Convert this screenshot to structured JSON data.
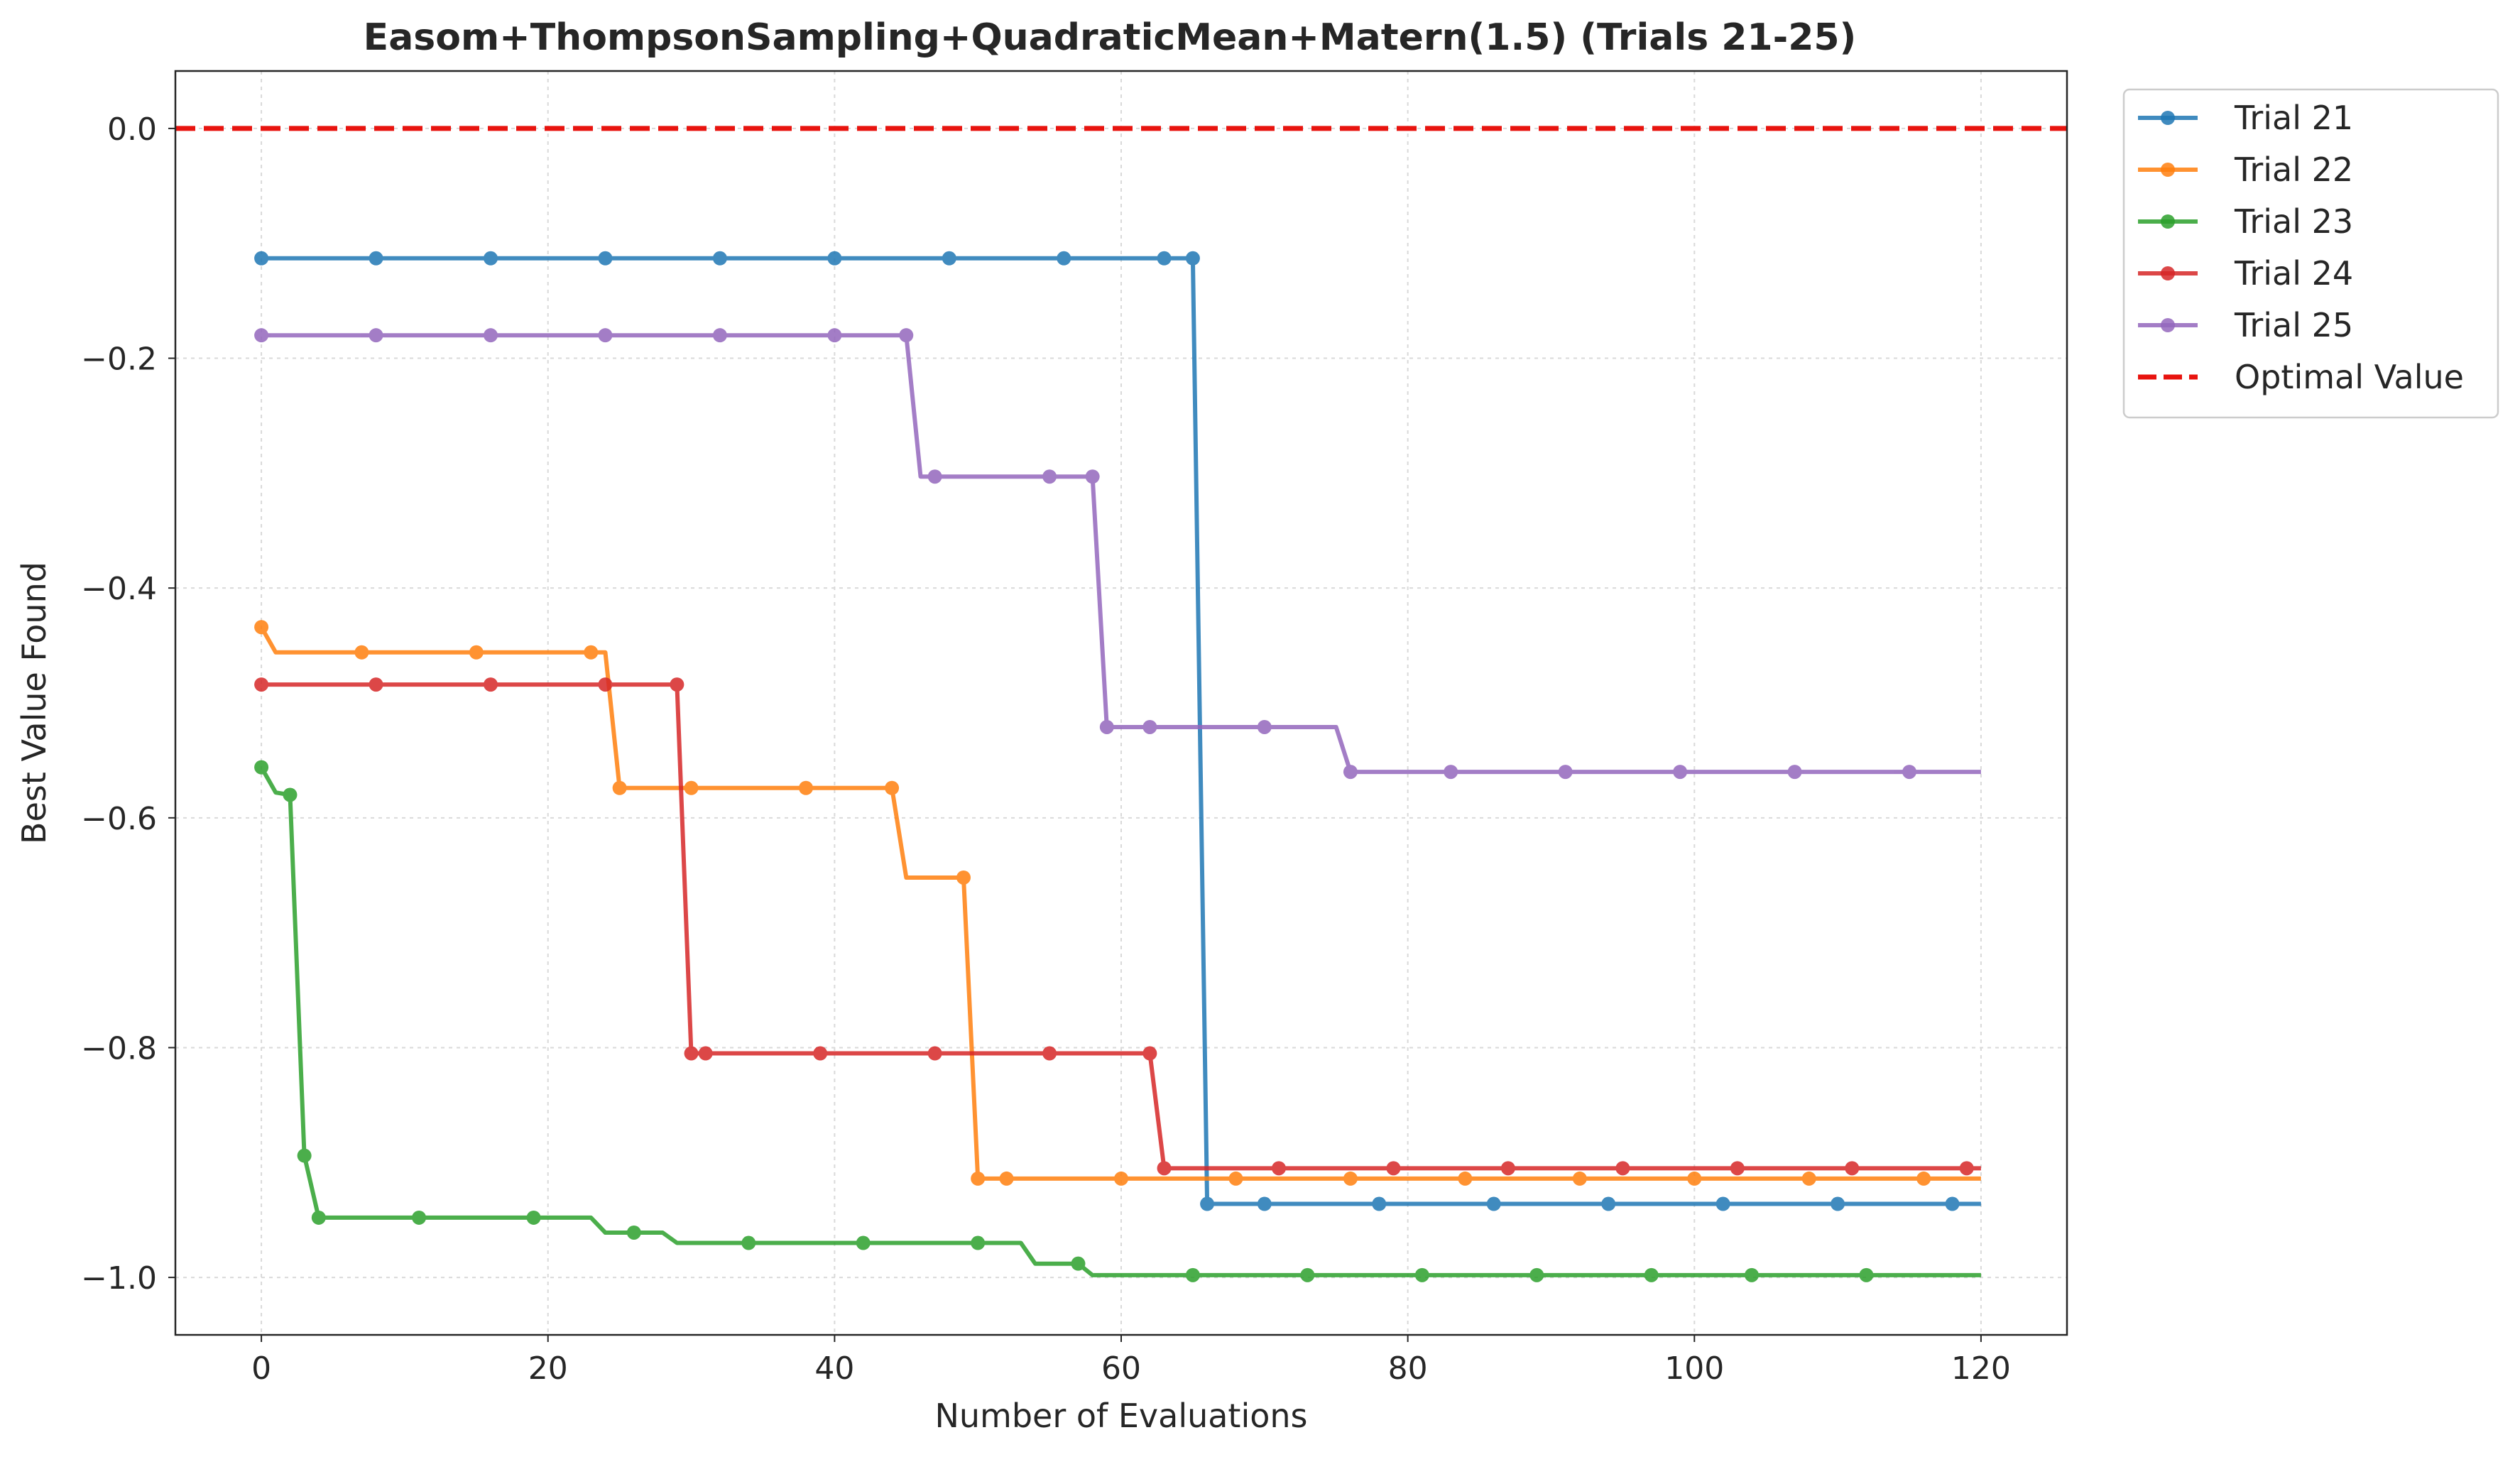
{
  "chart_data": {
    "type": "line",
    "title": "Easom+ThompsonSampling+QuadraticMean+Matern(1.5) (Trials 21-25)",
    "xlabel": "Number of Evaluations",
    "ylabel": "Best Value Found",
    "xlim": [
      -6,
      126
    ],
    "ylim": [
      -1.05,
      0.05
    ],
    "xticks": [
      0,
      20,
      40,
      60,
      80,
      100,
      120
    ],
    "yticks": [
      -1.0,
      -0.8,
      -0.6,
      -0.4,
      -0.2,
      0.0
    ],
    "xtick_labels": [
      "0",
      "20",
      "40",
      "60",
      "80",
      "100",
      "120"
    ],
    "ytick_labels": [
      "−1.0",
      "−0.8",
      "−0.6",
      "−0.4",
      "−0.2",
      "0.0"
    ],
    "grid": true,
    "legend_position": "outside-top-right",
    "reference_line": {
      "name": "Optimal Value",
      "y": 0.0,
      "color": "#e8140f",
      "style": "dashed"
    },
    "series": [
      {
        "name": "Trial 21",
        "color": "#1f77b4",
        "points": [
          [
            0,
            -0.113
          ],
          [
            65,
            -0.113
          ],
          [
            66,
            -0.936
          ],
          [
            120,
            -0.936
          ]
        ],
        "markers": [
          0,
          8,
          16,
          24,
          32,
          40,
          48,
          56,
          63,
          65,
          66,
          70,
          78,
          86,
          94,
          102,
          110,
          118
        ]
      },
      {
        "name": "Trial 22",
        "color": "#ff7f0e",
        "points": [
          [
            0,
            -0.434
          ],
          [
            1,
            -0.456
          ],
          [
            24,
            -0.456
          ],
          [
            25,
            -0.574
          ],
          [
            44,
            -0.574
          ],
          [
            45,
            -0.652
          ],
          [
            49,
            -0.652
          ],
          [
            50,
            -0.914
          ],
          [
            120,
            -0.914
          ]
        ],
        "markers": [
          0,
          7,
          15,
          23,
          25,
          30,
          38,
          44,
          49,
          50,
          52,
          60,
          68,
          76,
          84,
          92,
          100,
          108,
          116
        ]
      },
      {
        "name": "Trial 23",
        "color": "#2ca02c",
        "points": [
          [
            0,
            -0.556
          ],
          [
            1,
            -0.578
          ],
          [
            2,
            -0.58
          ],
          [
            3,
            -0.894
          ],
          [
            4,
            -0.948
          ],
          [
            23,
            -0.948
          ],
          [
            24,
            -0.961
          ],
          [
            28,
            -0.961
          ],
          [
            29,
            -0.97
          ],
          [
            53,
            -0.97
          ],
          [
            54,
            -0.988
          ],
          [
            57,
            -0.988
          ],
          [
            58,
            -0.998
          ],
          [
            120,
            -0.998
          ]
        ],
        "markers": [
          0,
          2,
          3,
          4,
          11,
          19,
          26,
          34,
          42,
          50,
          57,
          65,
          73,
          81,
          89,
          97,
          104,
          112
        ]
      },
      {
        "name": "Trial 24",
        "color": "#d62728",
        "points": [
          [
            0,
            -0.484
          ],
          [
            29,
            -0.484
          ],
          [
            30,
            -0.805
          ],
          [
            62,
            -0.805
          ],
          [
            63,
            -0.905
          ],
          [
            120,
            -0.905
          ]
        ],
        "markers": [
          0,
          8,
          16,
          24,
          29,
          30,
          31,
          39,
          47,
          55,
          62,
          63,
          71,
          79,
          87,
          95,
          103,
          111,
          119
        ]
      },
      {
        "name": "Trial 25",
        "color": "#9467bd",
        "points": [
          [
            0,
            -0.18
          ],
          [
            45,
            -0.18
          ],
          [
            46,
            -0.303
          ],
          [
            58,
            -0.303
          ],
          [
            59,
            -0.521
          ],
          [
            75,
            -0.521
          ],
          [
            76,
            -0.56
          ],
          [
            120,
            -0.56
          ]
        ],
        "markers": [
          0,
          8,
          16,
          24,
          32,
          40,
          45,
          47,
          55,
          58,
          59,
          62,
          70,
          76,
          83,
          91,
          99,
          107,
          115
        ]
      }
    ]
  }
}
